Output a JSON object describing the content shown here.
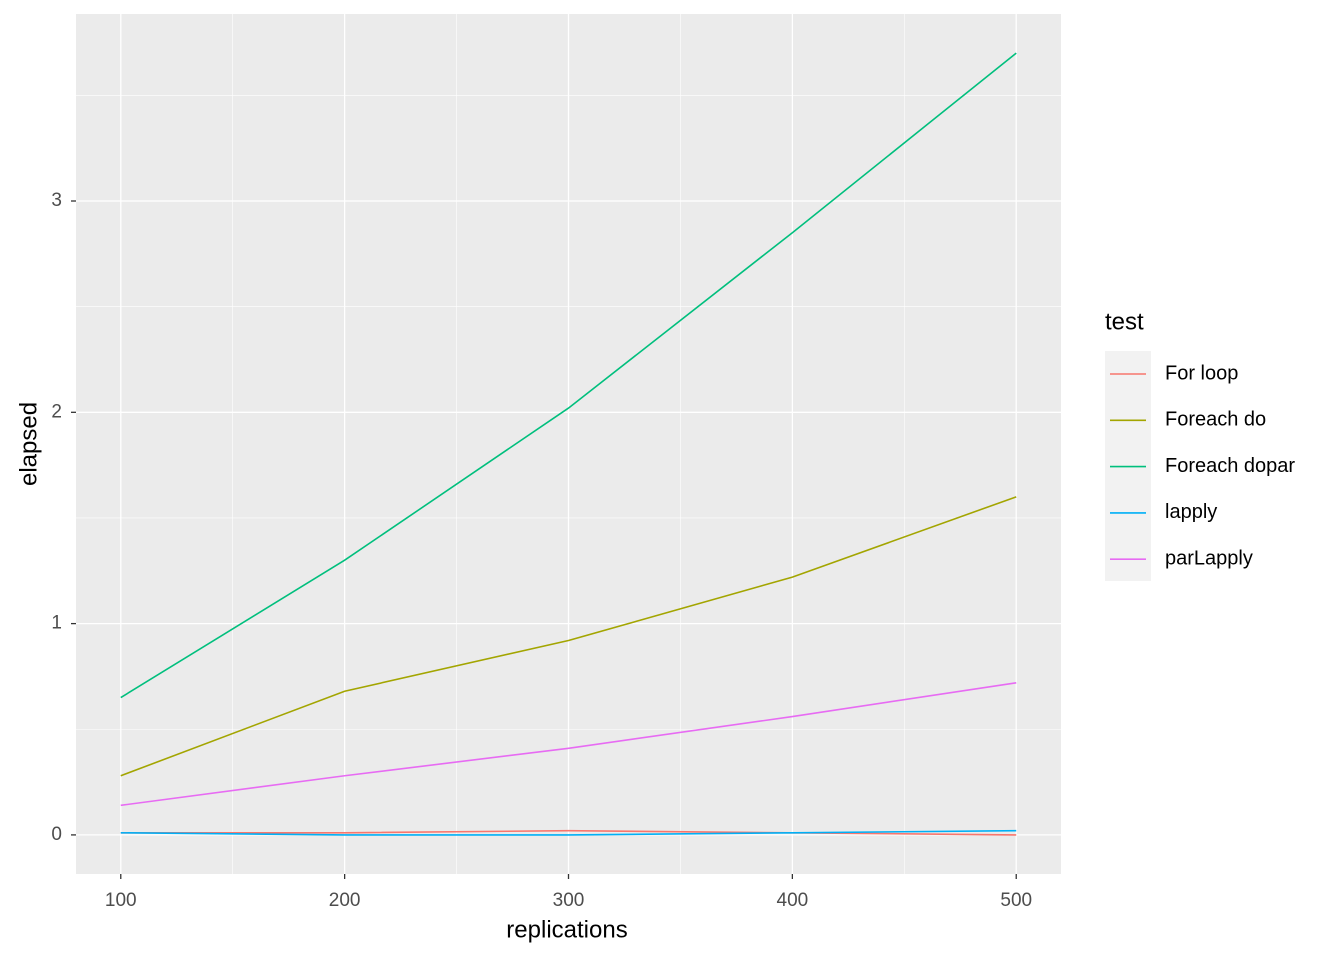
{
  "chart_data": {
    "type": "line",
    "x_label": "replications",
    "y_label": "elapsed",
    "x": [
      100,
      200,
      300,
      400,
      500
    ],
    "series": [
      {
        "name": "For loop",
        "color": "#F8766D",
        "values": [
          0.01,
          0.01,
          0.02,
          0.01,
          0.0
        ]
      },
      {
        "name": "Foreach do",
        "color": "#A3A500",
        "values": [
          0.28,
          0.68,
          0.92,
          1.22,
          1.6
        ]
      },
      {
        "name": "Foreach dopar",
        "color": "#00BF7D",
        "values": [
          0.65,
          1.3,
          2.02,
          2.85,
          3.7
        ]
      },
      {
        "name": "lapply",
        "color": "#00B0F6",
        "values": [
          0.01,
          0.0,
          0.0,
          0.01,
          0.02
        ]
      },
      {
        "name": "parLapply",
        "color": "#E76BF3",
        "values": [
          0.14,
          0.28,
          0.41,
          0.56,
          0.72
        ]
      }
    ],
    "xlim": [
      80,
      520
    ],
    "xticks": [
      100,
      200,
      300,
      400,
      500
    ],
    "xminor": [
      150,
      250,
      350,
      450
    ],
    "ylim": [
      -0.185,
      3.885
    ],
    "yticks": [
      0,
      1,
      2,
      3
    ],
    "yminor": [
      0.5,
      1.5,
      2.5,
      3.5
    ],
    "grid": true,
    "legend_title": "test",
    "legend_position": "right"
  }
}
